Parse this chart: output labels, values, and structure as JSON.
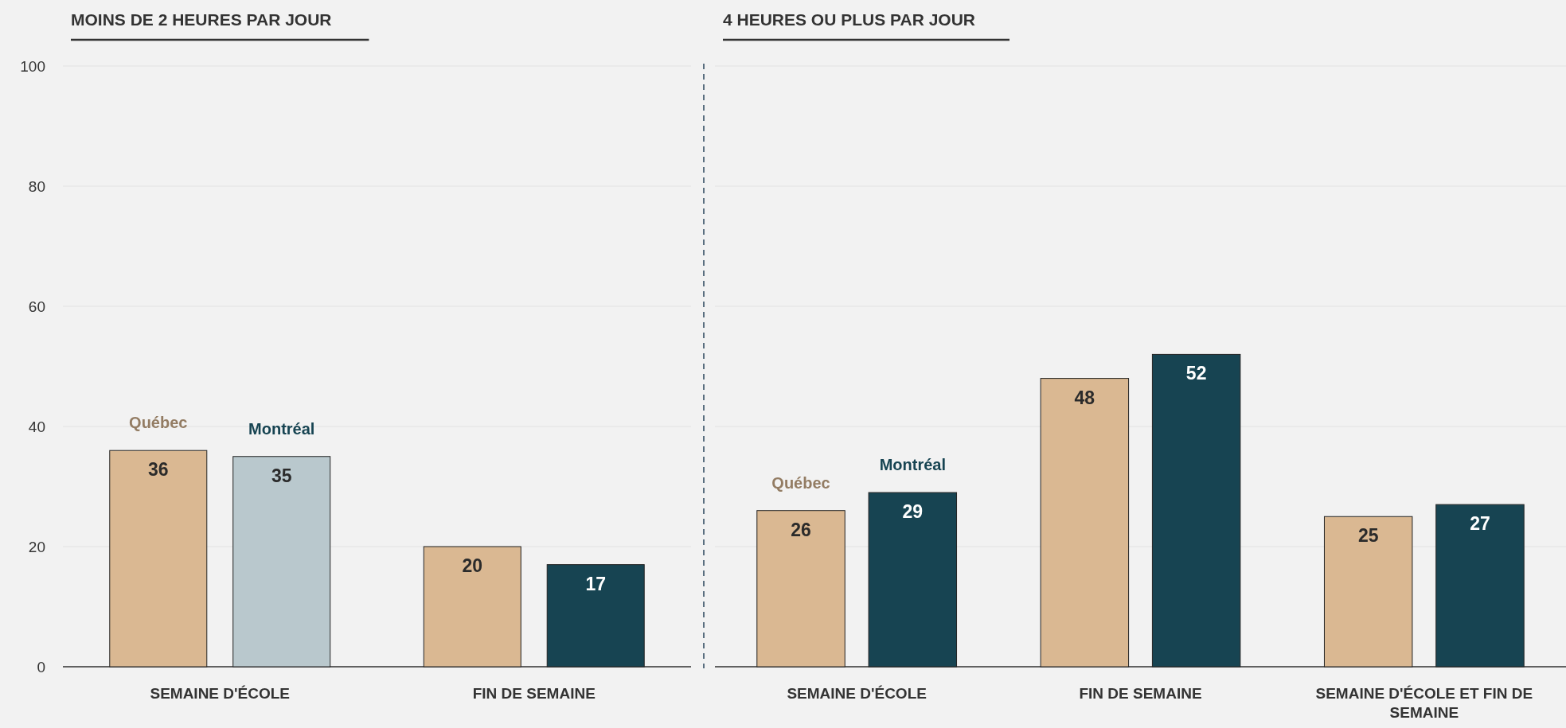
{
  "chart_data": [
    {
      "type": "bar",
      "title": "MOINS DE 2 HEURES PAR JOUR",
      "categories": [
        "SEMAINE D'ÉCOLE",
        "FIN DE SEMAINE"
      ],
      "series": [
        {
          "name": "Québec",
          "color": "#dab892",
          "values": [
            36,
            20
          ]
        },
        {
          "name": "Montréal",
          "color": "#174452",
          "colors": [
            "#b9c8cd",
            "#174452"
          ],
          "values": [
            35,
            17
          ]
        }
      ],
      "ylim": [
        0,
        100
      ],
      "yticks": [
        0,
        20,
        40,
        60,
        80,
        100
      ],
      "grid": "y",
      "data_labels": true
    },
    {
      "type": "bar",
      "title": "4 HEURES OU PLUS PAR JOUR",
      "categories": [
        "SEMAINE D'ÉCOLE",
        "FIN DE SEMAINE",
        "SEMAINE D'ÉCOLE ET FIN DE SEMAINE"
      ],
      "series": [
        {
          "name": "Québec",
          "color": "#dab892",
          "values": [
            26,
            48,
            25
          ]
        },
        {
          "name": "Montréal",
          "color": "#174452",
          "values": [
            29,
            52,
            27
          ]
        }
      ],
      "ylim": [
        0,
        100
      ],
      "yticks": [
        0,
        20,
        40,
        60,
        80,
        100
      ],
      "grid": "y",
      "data_labels": true,
      "tick_labels": "x"
    }
  ]
}
